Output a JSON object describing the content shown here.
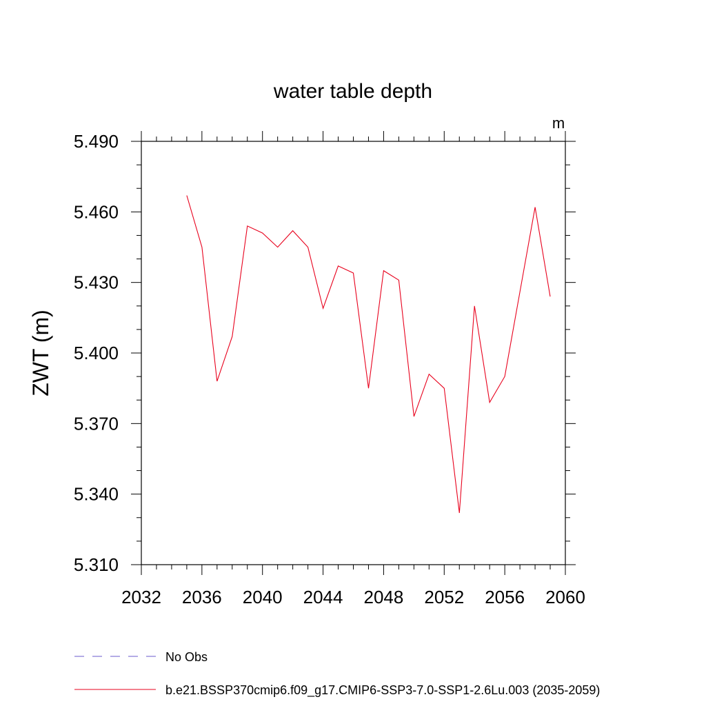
{
  "chart_data": {
    "type": "line",
    "title": "water table depth",
    "units": "m",
    "ylabel": "ZWT  (m)",
    "xlabel": "",
    "xlim": [
      2032,
      2060
    ],
    "ylim": [
      5.31,
      5.49
    ],
    "xticks": [
      "2032",
      "2036",
      "2040",
      "2044",
      "2048",
      "2052",
      "2056",
      "2060"
    ],
    "yticks": [
      "5.310",
      "5.340",
      "5.370",
      "5.400",
      "5.430",
      "5.460",
      "5.490"
    ],
    "grid": false,
    "legend_placement": "bottom",
    "series": [
      {
        "name": "b.e21.BSSP370cmip6.f09_g17.CMIP6-SSP3-7.0-SSP1-2.6Lu.003 (2035-2059)",
        "color": "#e8001c",
        "style": "solid",
        "x": [
          2035,
          2036,
          2037,
          2038,
          2039,
          2040,
          2041,
          2042,
          2043,
          2044,
          2045,
          2046,
          2047,
          2048,
          2049,
          2050,
          2051,
          2052,
          2053,
          2054,
          2055,
          2056,
          2057,
          2058,
          2059
        ],
        "y": [
          5.467,
          5.445,
          5.388,
          5.407,
          5.454,
          5.451,
          5.445,
          5.452,
          5.445,
          5.419,
          5.437,
          5.434,
          5.385,
          5.435,
          5.431,
          5.373,
          5.391,
          5.385,
          5.332,
          5.42,
          5.379,
          5.39,
          5.426,
          5.462,
          5.424
        ]
      }
    ],
    "legend": [
      {
        "label": "No Obs",
        "color": "#6a5acd",
        "style": "dashed"
      },
      {
        "label": "b.e21.BSSP370cmip6.f09_g17.CMIP6-SSP3-7.0-SSP1-2.6Lu.003 (2035-2059)",
        "color": "#e8001c",
        "style": "solid"
      }
    ]
  }
}
